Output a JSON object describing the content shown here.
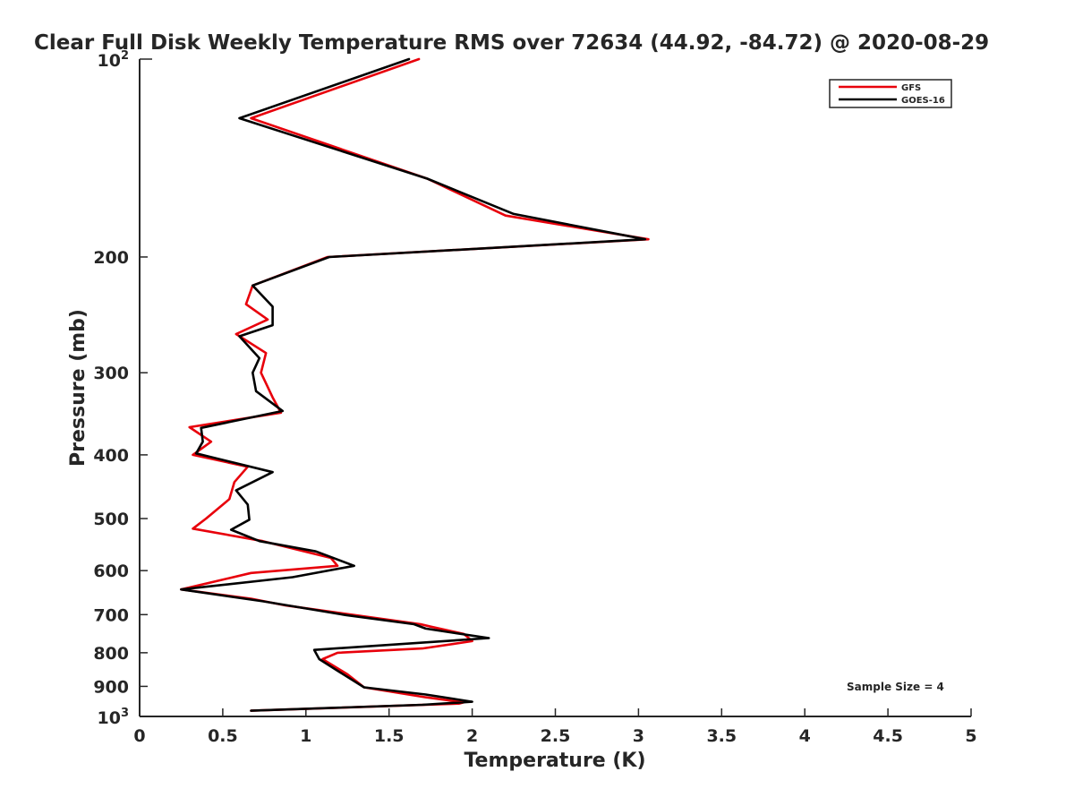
{
  "chart_data": {
    "type": "line",
    "title": "Clear Full Disk Weekly Temperature RMS over 72634 (44.92, -84.72) @ 2020-08-29",
    "xlabel": "Temperature (K)",
    "ylabel": "Pressure (mb)",
    "xlim": [
      0,
      5
    ],
    "ylim": [
      100,
      1000
    ],
    "y_scale": "log",
    "y_reversed": true,
    "grid": false,
    "legend_position": "top-right",
    "x_ticks": [
      0,
      0.5,
      1,
      1.5,
      2,
      2.5,
      3,
      3.5,
      4,
      4.5,
      5
    ],
    "x_tick_labels": [
      "0",
      "0.5",
      "1",
      "1.5",
      "2",
      "2.5",
      "3",
      "3.5",
      "4",
      "4.5",
      "5"
    ],
    "y_ticks": [
      200,
      300,
      400,
      500,
      600,
      700,
      800,
      900
    ],
    "y_tick_labels": [
      "200",
      "300",
      "400",
      "500",
      "600",
      "700",
      "800",
      "900"
    ],
    "y_major_ticks": [
      {
        "value": 100,
        "base": "10",
        "exponent": "2"
      },
      {
        "value": 1000,
        "base": "10",
        "exponent": "3"
      }
    ],
    "annotation": "Sample Size = 4",
    "series": [
      {
        "name": "GFS",
        "color": "#e8000b",
        "points": [
          [
            1.68,
            100
          ],
          [
            0.67,
            123
          ],
          [
            1.73,
            152
          ],
          [
            2.2,
            173
          ],
          [
            3.06,
            188
          ],
          [
            1.13,
            200
          ],
          [
            0.68,
            221
          ],
          [
            0.64,
            236
          ],
          [
            0.77,
            249
          ],
          [
            0.58,
            262
          ],
          [
            0.76,
            280
          ],
          [
            0.73,
            300
          ],
          [
            0.8,
            327
          ],
          [
            0.85,
            345
          ],
          [
            0.3,
            363
          ],
          [
            0.43,
            382
          ],
          [
            0.32,
            400
          ],
          [
            0.65,
            417
          ],
          [
            0.57,
            440
          ],
          [
            0.54,
            467
          ],
          [
            0.4,
            500
          ],
          [
            0.32,
            518
          ],
          [
            0.74,
            541
          ],
          [
            1.15,
            574
          ],
          [
            1.19,
            590
          ],
          [
            0.67,
            605
          ],
          [
            0.25,
            641
          ],
          [
            0.67,
            662
          ],
          [
            0.88,
            678
          ],
          [
            1.69,
            724
          ],
          [
            1.75,
            730
          ],
          [
            1.95,
            749
          ],
          [
            2.0,
            768
          ],
          [
            1.7,
            788
          ],
          [
            1.19,
            800
          ],
          [
            1.1,
            818
          ],
          [
            1.25,
            863
          ],
          [
            1.35,
            903
          ],
          [
            1.72,
            935
          ],
          [
            1.95,
            952
          ],
          [
            1.92,
            956
          ],
          [
            0.67,
            980
          ]
        ]
      },
      {
        "name": "GOES-16",
        "color": "#000000",
        "points": [
          [
            1.62,
            100
          ],
          [
            0.6,
            123
          ],
          [
            1.73,
            152
          ],
          [
            2.25,
            172
          ],
          [
            3.04,
            188
          ],
          [
            1.14,
            200
          ],
          [
            0.68,
            221
          ],
          [
            0.8,
            238
          ],
          [
            0.8,
            254
          ],
          [
            0.6,
            264
          ],
          [
            0.72,
            285
          ],
          [
            0.68,
            300
          ],
          [
            0.7,
            320
          ],
          [
            0.86,
            343
          ],
          [
            0.37,
            364
          ],
          [
            0.38,
            382
          ],
          [
            0.34,
            398
          ],
          [
            0.8,
            425
          ],
          [
            0.58,
            453
          ],
          [
            0.65,
            476
          ],
          [
            0.66,
            502
          ],
          [
            0.55,
            520
          ],
          [
            0.72,
            541
          ],
          [
            1.06,
            561
          ],
          [
            1.29,
            590
          ],
          [
            0.92,
            614
          ],
          [
            0.25,
            641
          ],
          [
            0.74,
            668
          ],
          [
            1.24,
            701
          ],
          [
            1.65,
            724
          ],
          [
            1.72,
            735
          ],
          [
            2.1,
            760
          ],
          [
            1.05,
            792
          ],
          [
            1.08,
            818
          ],
          [
            1.2,
            855
          ],
          [
            1.35,
            903
          ],
          [
            1.72,
            926
          ],
          [
            2.0,
            950
          ],
          [
            1.7,
            960
          ],
          [
            0.67,
            980
          ]
        ]
      }
    ]
  }
}
